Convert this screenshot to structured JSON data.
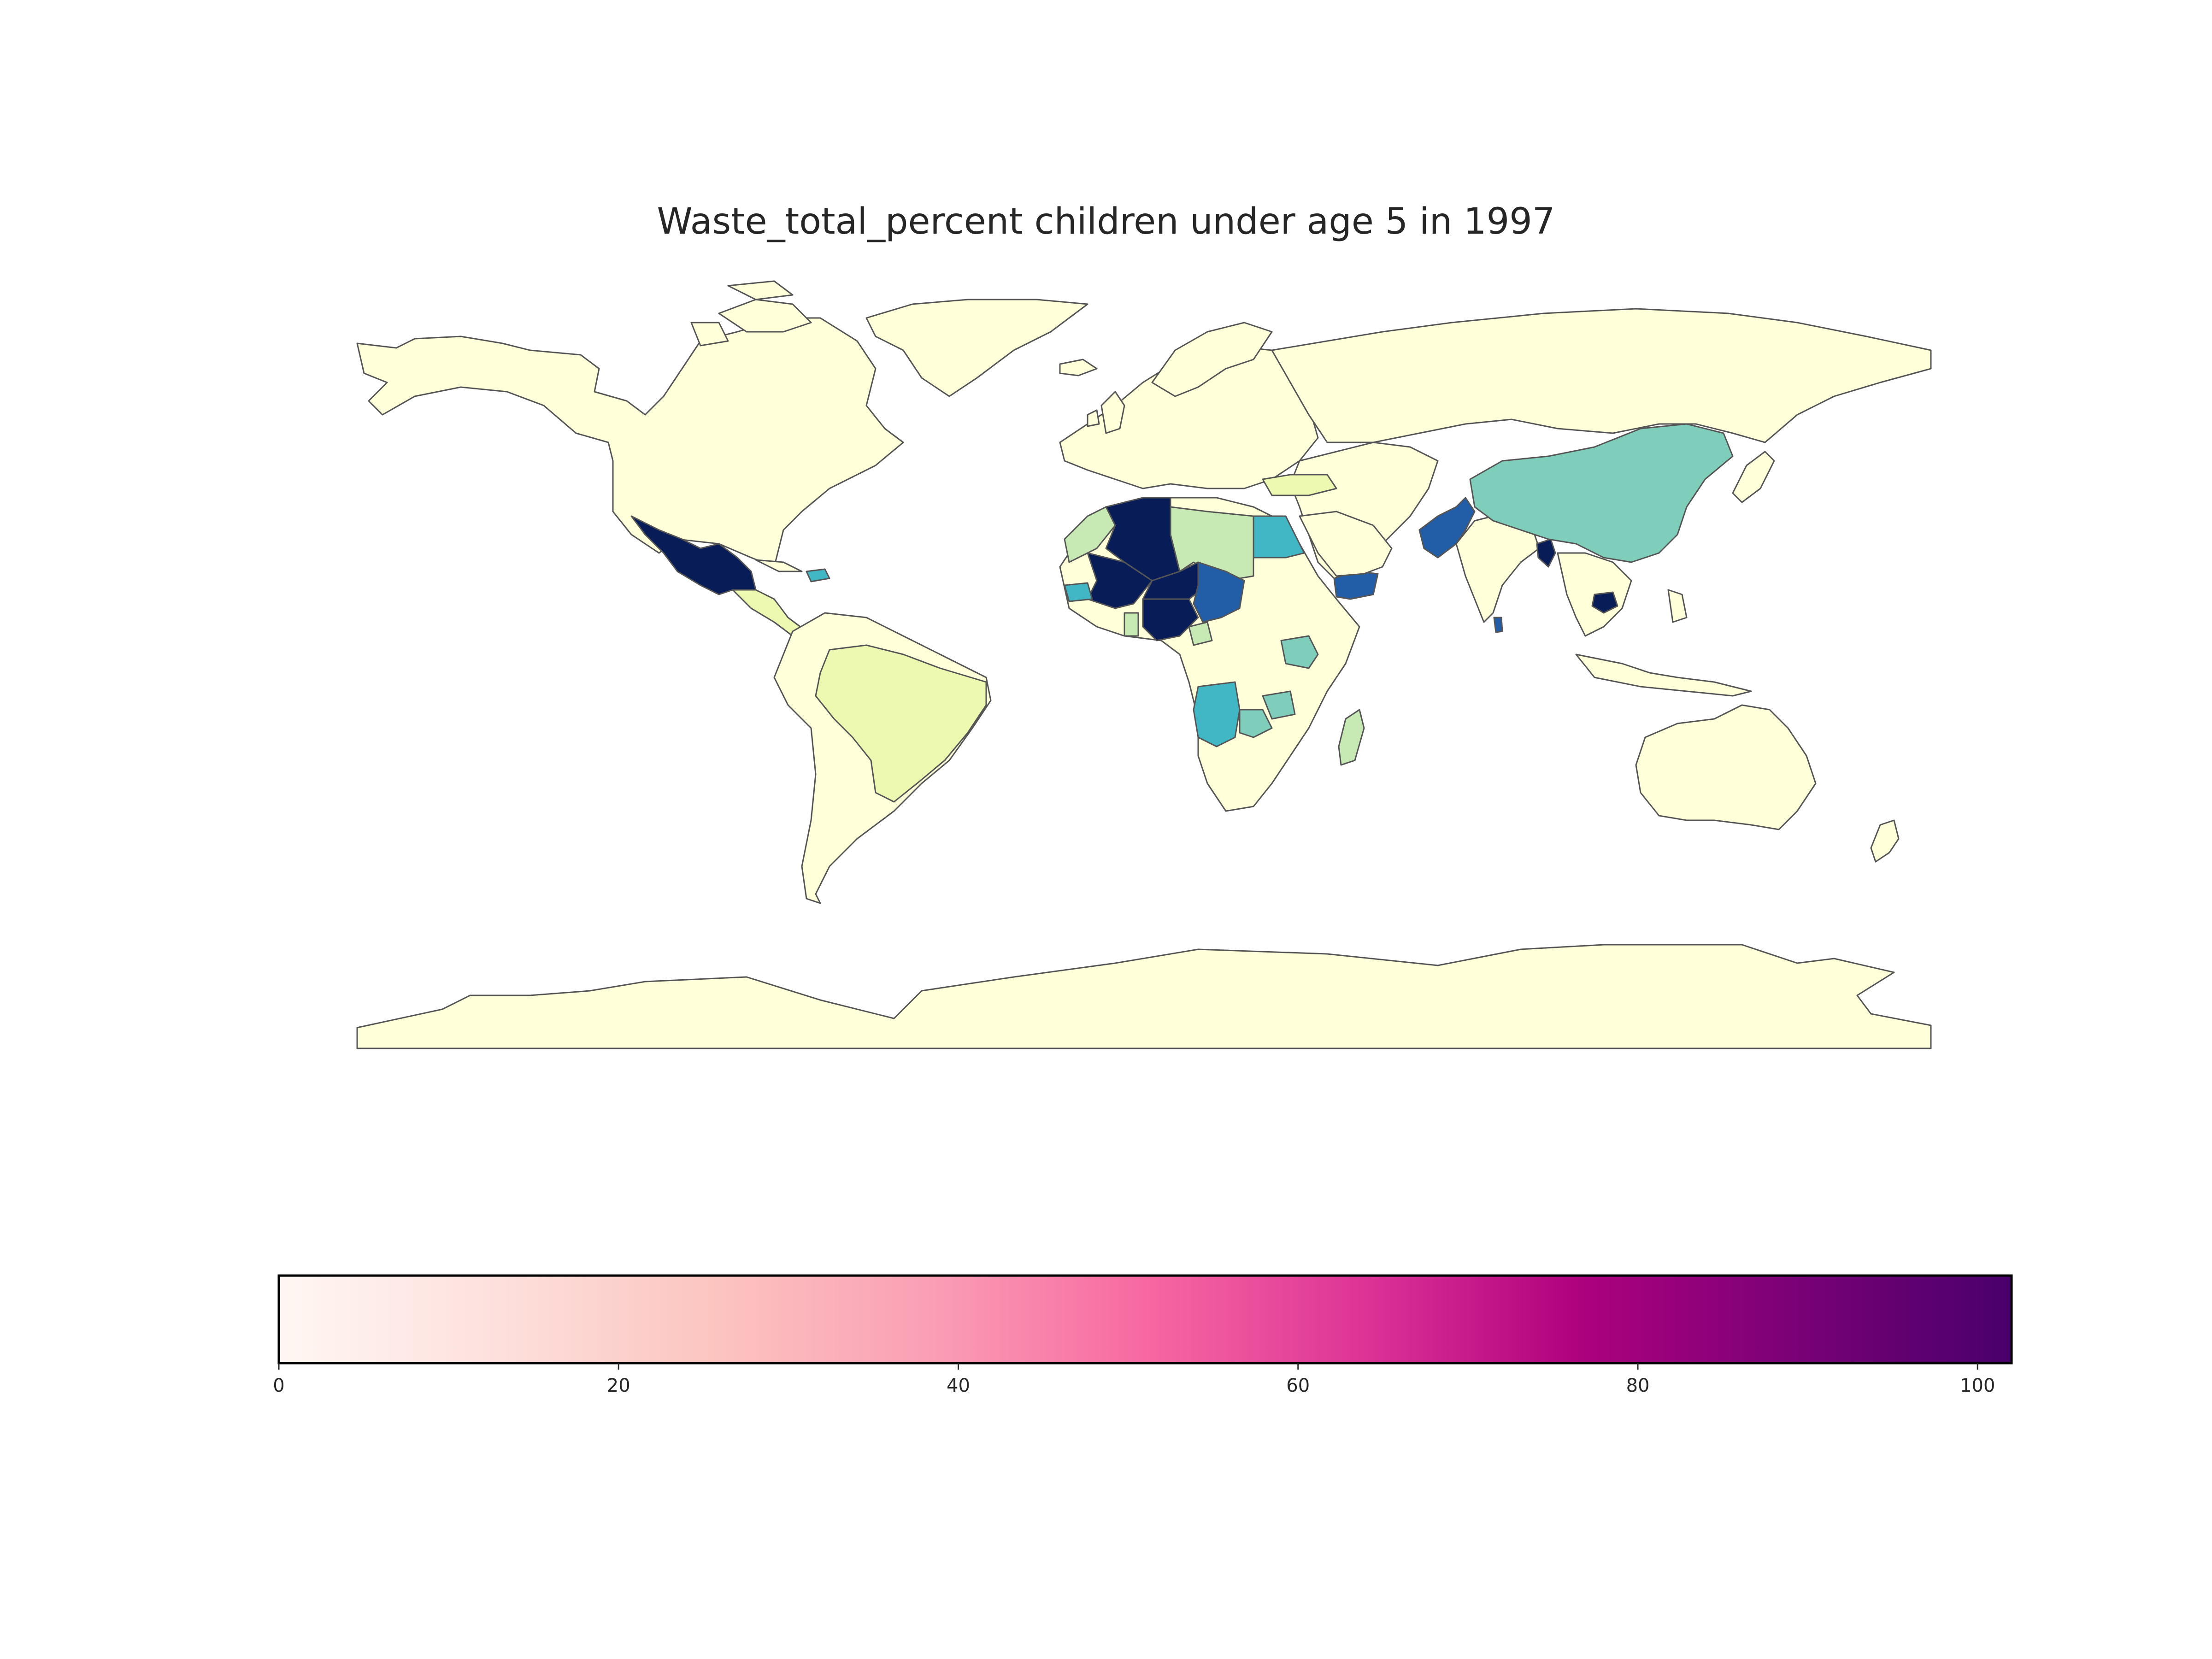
{
  "title": "Waste_total_percent children under age 5 in 1997",
  "colorbar": {
    "ticks": [
      "0",
      "20",
      "40",
      "60",
      "80",
      "100"
    ],
    "tick_values": [
      0,
      20,
      40,
      60,
      80,
      100
    ],
    "range": [
      0,
      102
    ],
    "colormap": "RdPu",
    "colors": [
      "#fff7f3",
      "#fde0dd",
      "#fcc5c0",
      "#fa9fb5",
      "#f768a1",
      "#dd3497",
      "#ae017e",
      "#7a0177",
      "#49006a"
    ]
  },
  "map": {
    "land_color": "#ffffd9",
    "border_color": "#555555",
    "fill_palette": {
      "very_low": "#edf8b1",
      "low": "#c7e9b4",
      "mid": "#7fcdbb",
      "mid_high": "#41b6c4",
      "high": "#225ea8",
      "very_high": "#081d58"
    },
    "highlighted_regions": [
      {
        "region": "Mexico",
        "level": "very_high"
      },
      {
        "region": "Algeria",
        "level": "very_high"
      },
      {
        "region": "Niger",
        "level": "very_high"
      },
      {
        "region": "Nigeria",
        "level": "very_high"
      },
      {
        "region": "Mali",
        "level": "very_high"
      },
      {
        "region": "Bangladesh",
        "level": "very_high"
      },
      {
        "region": "Cambodia",
        "level": "very_high"
      },
      {
        "region": "Chad",
        "level": "high"
      },
      {
        "region": "Pakistan",
        "level": "high"
      },
      {
        "region": "Yemen",
        "level": "high"
      },
      {
        "region": "Sri Lanka",
        "level": "high"
      },
      {
        "region": "Egypt",
        "level": "mid_high"
      },
      {
        "region": "Angola",
        "level": "mid_high"
      },
      {
        "region": "Senegal",
        "level": "mid_high"
      },
      {
        "region": "China",
        "level": "mid"
      },
      {
        "region": "Kenya",
        "level": "mid"
      },
      {
        "region": "Tanzania",
        "level": "mid"
      },
      {
        "region": "Libya",
        "level": "low"
      },
      {
        "region": "Morocco",
        "level": "low"
      },
      {
        "region": "Brazil",
        "level": "very_low"
      },
      {
        "region": "Madagascar",
        "level": "very_low"
      },
      {
        "region": "Central America",
        "level": "very_low"
      }
    ]
  }
}
